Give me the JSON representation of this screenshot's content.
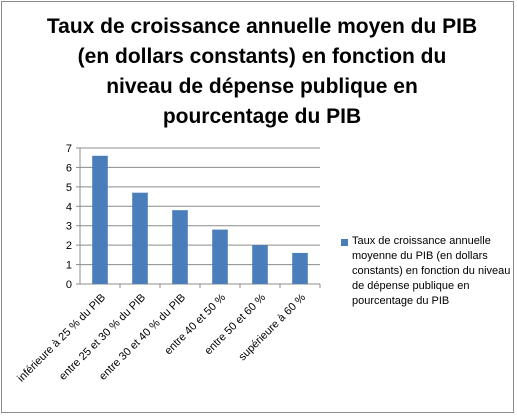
{
  "chart_data": {
    "type": "bar",
    "title": "Taux de croissance annuelle moyen du PIB (en dollars constants) en fonction du niveau de dépense publique en pourcentage du PIB",
    "xlabel": "",
    "ylabel": "",
    "categories": [
      "inférieure à 25 % du PIB",
      "entre 25 et 30 % du PIB",
      "entre 30 et 40 % du PIB",
      "entre 40 et 50 %",
      "entre 50 et 60 %",
      "supérieure à 60 %"
    ],
    "series": [
      {
        "name": "Taux de croissance annuelle moyenne du PIB (en dollars constants) en fonction du niveau de dépense publique en pourcentage du PIB",
        "values": [
          6.6,
          4.7,
          3.8,
          2.8,
          2.0,
          1.6
        ],
        "color": "#4a7ebb"
      }
    ],
    "ylim": [
      0,
      7
    ],
    "yticks": [
      "0",
      "1",
      "2",
      "3",
      "4",
      "5",
      "6",
      "7"
    ],
    "grid": true,
    "legend": "right"
  }
}
